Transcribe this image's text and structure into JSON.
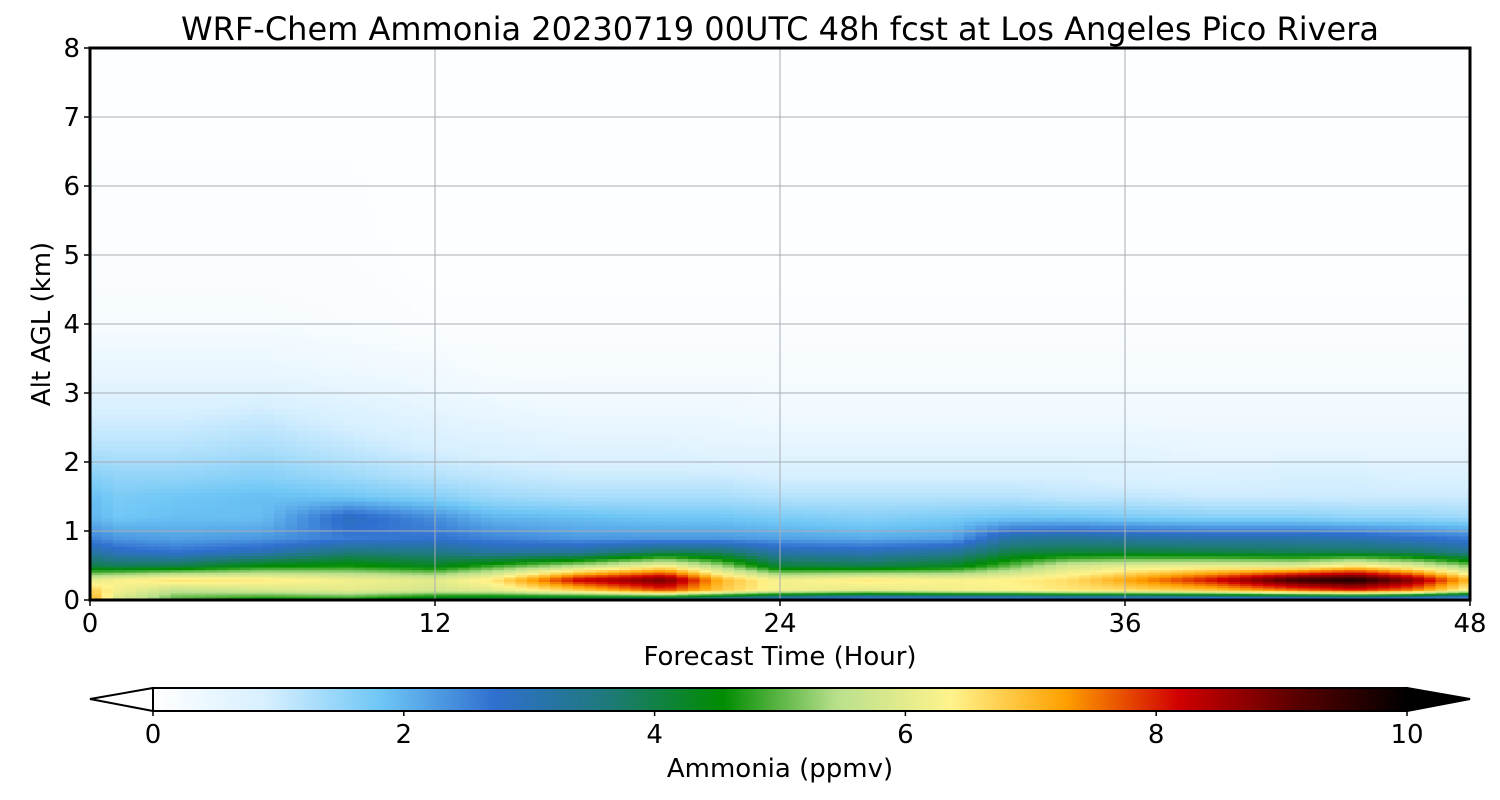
{
  "chart_data": {
    "type": "heatmap",
    "title": "WRF-Chem Ammonia  20230719 00UTC 48h fcst at Los Angeles Pico Rivera",
    "xlabel": "Forecast Time (Hour)",
    "ylabel": "Alt AGL (km)",
    "xlim": [
      0,
      48
    ],
    "ylim": [
      0,
      8
    ],
    "x_ticks": [
      "0",
      "12",
      "24",
      "36",
      "48"
    ],
    "y_ticks": [
      "0",
      "1",
      "2",
      "3",
      "4",
      "5",
      "6",
      "7",
      "8"
    ],
    "grid": true,
    "colorbar": {
      "label": "Ammonia  (ppmv)",
      "min": 0,
      "max": 10,
      "ticks": [
        "0",
        "2",
        "4",
        "6",
        "8",
        "10"
      ],
      "extend": "both",
      "colors": [
        "#ffffff",
        "#d6efff",
        "#6ec6f5",
        "#2f6fcf",
        "#1e7a78",
        "#008c00",
        "#b9e08c",
        "#fff38c",
        "#ffa000",
        "#d10000",
        "#5c0000",
        "#000000"
      ]
    },
    "x": [
      0,
      1,
      3,
      6,
      9,
      12,
      14,
      17,
      20,
      22,
      24,
      27,
      30,
      32,
      34,
      36,
      39,
      42,
      44,
      46,
      48
    ],
    "series": [
      {
        "values": [
          [
            7.2,
            5.8,
            4.8,
            4.3,
            4.4,
            3.8,
            3.5,
            3.1,
            2.6,
            2.4,
            2.0,
            1.5,
            1.5,
            1.4,
            1.5,
            1.4,
            1.3,
            1.2,
            1.2,
            1.1,
            1.0
          ],
          [
            6.8,
            6.2,
            5.6,
            5.8,
            6.0,
            5.8,
            6.0,
            6.8,
            7.8,
            6.8,
            6.2,
            6.0,
            6.2,
            6.3,
            6.5,
            6.6,
            6.9,
            7.6,
            8.0,
            7.5,
            6.2
          ],
          [
            6.0,
            6.3,
            6.6,
            6.5,
            6.2,
            6.0,
            6.5,
            8.3,
            9.0,
            7.0,
            6.2,
            6.5,
            6.3,
            6.4,
            6.6,
            7.2,
            8.2,
            9.5,
            9.8,
            8.8,
            7.0
          ],
          [
            4.0,
            3.9,
            4.0,
            4.5,
            4.6,
            4.3,
            4.8,
            5.5,
            6.3,
            5.3,
            4.1,
            4.0,
            4.3,
            5.0,
            5.8,
            6.0,
            6.1,
            6.0,
            6.5,
            6.0,
            5.2
          ],
          [
            3.2,
            2.9,
            2.7,
            3.0,
            3.6,
            3.5,
            3.2,
            3.3,
            3.9,
            3.8,
            3.1,
            3.0,
            3.3,
            4.0,
            4.1,
            4.1,
            4.0,
            3.9,
            3.9,
            3.8,
            3.4
          ],
          [
            2.5,
            2.3,
            2.2,
            2.3,
            2.6,
            2.7,
            2.5,
            2.3,
            2.3,
            2.3,
            2.2,
            2.1,
            2.2,
            3.2,
            3.3,
            3.2,
            3.1,
            3.1,
            3.0,
            2.8,
            2.6
          ],
          [
            2.0,
            1.8,
            1.9,
            1.9,
            2.9,
            2.4,
            2.0,
            1.9,
            1.8,
            1.8,
            1.7,
            1.6,
            1.7,
            1.8,
            1.8,
            1.7,
            1.6,
            1.6,
            1.5,
            1.5,
            1.4
          ],
          [
            1.9,
            1.7,
            1.8,
            1.9,
            1.8,
            1.6,
            1.4,
            1.3,
            1.3,
            1.3,
            1.2,
            1.2,
            1.2,
            1.2,
            1.1,
            1.1,
            1.0,
            1.0,
            1.0,
            1.0,
            1.0
          ],
          [
            1.6,
            1.5,
            1.5,
            1.6,
            1.4,
            1.2,
            1.1,
            1.0,
            1.0,
            1.0,
            0.9,
            0.9,
            0.9,
            0.9,
            0.9,
            0.8,
            0.8,
            0.9,
            0.9,
            0.8,
            0.8
          ],
          [
            1.2,
            1.2,
            1.2,
            1.3,
            1.1,
            0.9,
            0.8,
            0.7,
            0.7,
            0.6,
            0.6,
            0.6,
            0.6,
            0.6,
            0.6,
            0.6,
            0.5,
            0.5,
            0.5,
            0.5,
            0.5
          ],
          [
            0.9,
            0.9,
            0.9,
            1.0,
            0.8,
            0.6,
            0.5,
            0.4,
            0.4,
            0.4,
            0.3,
            0.3,
            0.3,
            0.3,
            0.3,
            0.3,
            0.3,
            0.3,
            0.3,
            0.3,
            0.3
          ],
          [
            0.5,
            0.5,
            0.5,
            0.5,
            0.4,
            0.3,
            0.2,
            0.2,
            0.2,
            0.2,
            0.2,
            0.2,
            0.2,
            0.2,
            0.2,
            0.2,
            0.2,
            0.2,
            0.2,
            0.2,
            0.2
          ],
          [
            0.2,
            0.2,
            0.2,
            0.2,
            0.15,
            0.1,
            0.1,
            0.1,
            0.1,
            0.1,
            0.1,
            0.1,
            0.1,
            0.1,
            0.1,
            0.1,
            0.1,
            0.1,
            0.1,
            0.1,
            0.1
          ],
          [
            0.1,
            0.1,
            0.1,
            0.1,
            0.1,
            0.05,
            0.05,
            0.05,
            0.05,
            0.05,
            0.05,
            0.05,
            0.05,
            0.05,
            0.05,
            0.05,
            0.05,
            0.05,
            0.05,
            0.05,
            0.05
          ],
          [
            0.05,
            0.05,
            0.05,
            0.05,
            0.05,
            0.05,
            0.05,
            0.05,
            0.05,
            0.05,
            0.05,
            0.05,
            0.05,
            0.05,
            0.05,
            0.05,
            0.05,
            0.05,
            0.05,
            0.05,
            0.05
          ]
        ]
      }
    ],
    "y": [
      0.0,
      0.15,
      0.3,
      0.5,
      0.7,
      0.9,
      1.2,
      1.5,
      1.8,
      2.2,
      2.7,
      3.3,
      4.0,
      5.0,
      8.0
    ]
  }
}
